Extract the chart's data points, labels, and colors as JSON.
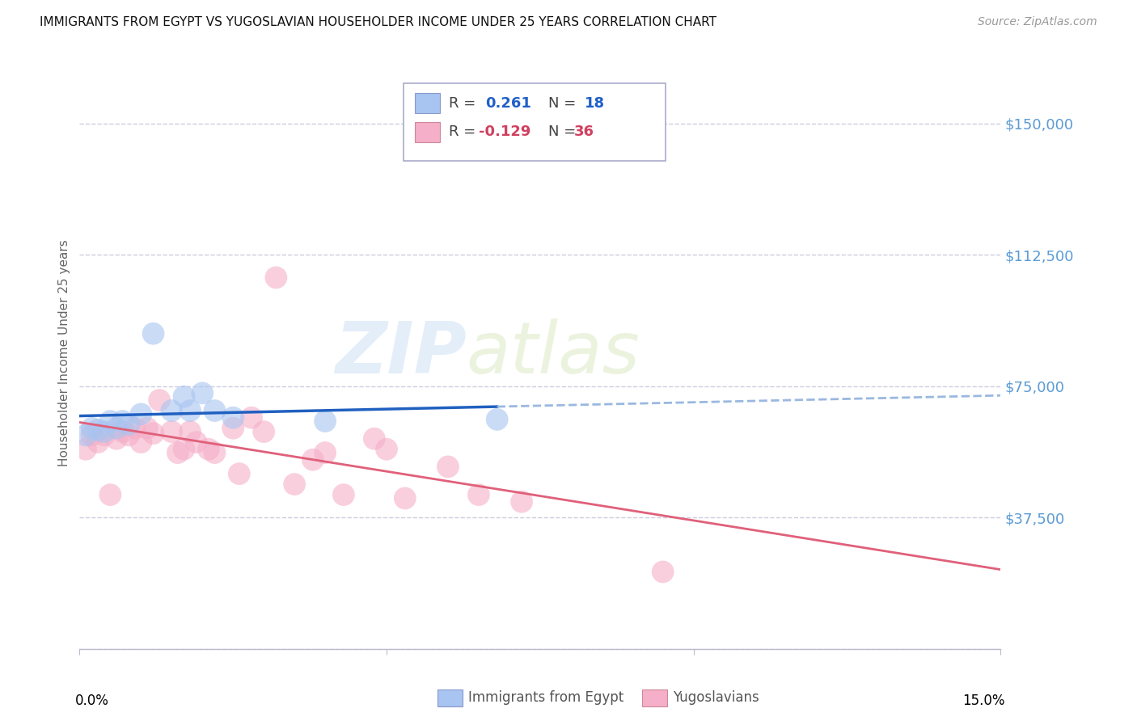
{
  "title": "IMMIGRANTS FROM EGYPT VS YUGOSLAVIAN HOUSEHOLDER INCOME UNDER 25 YEARS CORRELATION CHART",
  "source": "Source: ZipAtlas.com",
  "ylabel": "Householder Income Under 25 years",
  "watermark_zip": "ZIP",
  "watermark_atlas": "atlas",
  "blue_r": "0.261",
  "blue_n": "18",
  "pink_r": "-0.129",
  "pink_n": "36",
  "legend_label_blue": "Immigrants from Egypt",
  "legend_label_pink": "Yugoslavians",
  "blue_fill": "#a8c4f0",
  "pink_fill": "#f5afc8",
  "trend_blue_solid": "#2060c0",
  "trend_blue_dash": "#9ab8e0",
  "trend_pink_solid": "#e0607a",
  "grid_color": "#ccccdd",
  "ytick_color": "#5b9bd5",
  "ymin": 0,
  "ymax": 168750,
  "xmin": 0.0,
  "xmax": 0.15,
  "blue_x": [
    0.001,
    0.002,
    0.003,
    0.004,
    0.005,
    0.006,
    0.007,
    0.008,
    0.01,
    0.012,
    0.015,
    0.017,
    0.018,
    0.02,
    0.022,
    0.025,
    0.04,
    0.068
  ],
  "blue_y": [
    61000,
    63000,
    62500,
    62000,
    65000,
    63000,
    65000,
    64000,
    67000,
    90000,
    68000,
    72000,
    68000,
    73000,
    68000,
    66000,
    65000,
    65500
  ],
  "pink_x": [
    0.001,
    0.002,
    0.003,
    0.004,
    0.005,
    0.006,
    0.007,
    0.008,
    0.009,
    0.01,
    0.011,
    0.012,
    0.013,
    0.015,
    0.016,
    0.017,
    0.018,
    0.019,
    0.021,
    0.022,
    0.025,
    0.026,
    0.03,
    0.032,
    0.035,
    0.038,
    0.04,
    0.043,
    0.05,
    0.053,
    0.06,
    0.065,
    0.072,
    0.095,
    0.028,
    0.048
  ],
  "pink_y": [
    57000,
    61000,
    59000,
    61000,
    44000,
    60000,
    62000,
    61000,
    63000,
    59000,
    63000,
    61500,
    71000,
    62000,
    56000,
    57000,
    62000,
    59000,
    57000,
    56000,
    63000,
    50000,
    62000,
    106000,
    47000,
    54000,
    56000,
    44000,
    57000,
    43000,
    52000,
    44000,
    42000,
    22000,
    66000,
    60000
  ]
}
